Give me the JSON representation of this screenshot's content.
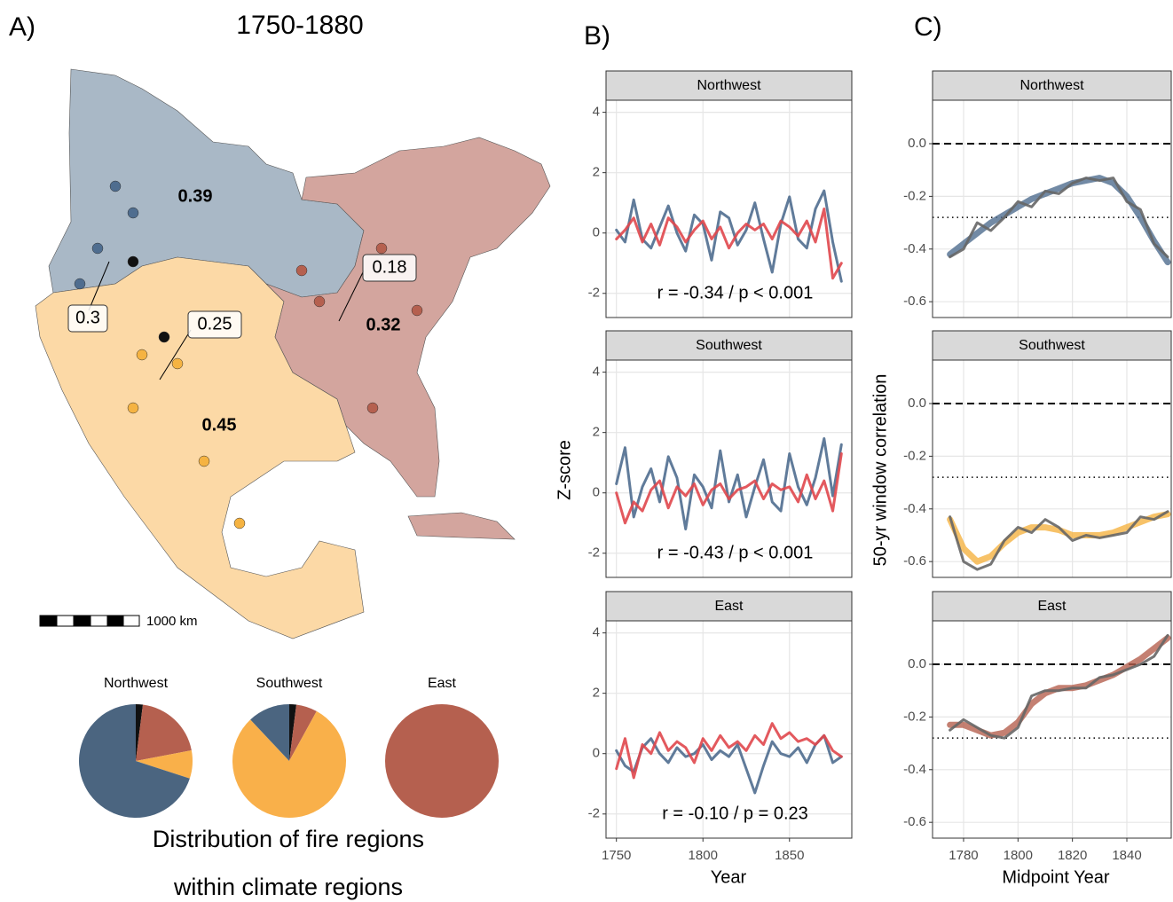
{
  "labels": {
    "a": "A)",
    "b": "B)",
    "c": "C)"
  },
  "map": {
    "title": "1750-1880",
    "region_values": [
      "0.39",
      "0.32",
      "0.45"
    ],
    "callouts": [
      "0.3",
      "0.25",
      "0.18"
    ],
    "scale": "1000 km"
  },
  "pie_caption": [
    "Distribution of fire regions",
    "within climate regions"
  ],
  "panel_b": {
    "xlabel": "Year",
    "ylabel": "Z-score"
  },
  "panel_c": {
    "xlabel": "Midpoint Year",
    "ylabel": "50-yr window correlation"
  },
  "chart_data": [
    {
      "type": "pie",
      "title": "Northwest",
      "values": [
        2,
        20,
        8,
        70
      ],
      "colors": [
        "#111111",
        "#b5604f",
        "#f9b04a",
        "#4b6580"
      ]
    },
    {
      "type": "pie",
      "title": "Southwest",
      "values": [
        2,
        6,
        80,
        12
      ],
      "colors": [
        "#111111",
        "#b5604f",
        "#f9b04a",
        "#4b6580"
      ]
    },
    {
      "type": "pie",
      "title": "East",
      "values": [
        0,
        100,
        0,
        0
      ],
      "colors": [
        "#111111",
        "#b5604f",
        "#f9b04a",
        "#4b6580"
      ]
    },
    {
      "type": "line",
      "title": "Northwest",
      "annotation": "r = -0.34 / p < 0.001",
      "x": [
        1750,
        1755,
        1760,
        1765,
        1770,
        1775,
        1780,
        1785,
        1790,
        1795,
        1800,
        1805,
        1810,
        1815,
        1820,
        1825,
        1830,
        1835,
        1840,
        1845,
        1850,
        1855,
        1860,
        1865,
        1870,
        1875,
        1880
      ],
      "xlim": [
        1744,
        1886
      ],
      "ylim": [
        -2.8,
        4.4
      ],
      "xticks": [
        1750,
        1800,
        1850
      ],
      "yticks": [
        -2,
        0,
        2,
        4
      ],
      "series": [
        {
          "color": "#4f6d8f",
          "width": 3,
          "values": [
            0.1,
            -0.3,
            1.1,
            -0.2,
            -0.5,
            0.2,
            0.9,
            0,
            -0.6,
            0.6,
            0.3,
            -0.9,
            0.7,
            0.5,
            -0.4,
            0.1,
            1.0,
            -0.2,
            -1.3,
            0.3,
            1.2,
            -0.2,
            -0.5,
            0.8,
            1.4,
            -0.3,
            -1.6
          ]
        },
        {
          "color": "#e0474c",
          "width": 3,
          "values": [
            -0.2,
            0.1,
            0.5,
            -0.3,
            0.3,
            -0.4,
            0.5,
            0.2,
            -0.3,
            0.1,
            0.4,
            -0.2,
            0.2,
            -0.5,
            0.0,
            0.3,
            0.1,
            0.3,
            -0.2,
            0.4,
            0.2,
            -0.1,
            0.4,
            -0.3,
            0.8,
            -1.5,
            -1.0
          ]
        }
      ]
    },
    {
      "type": "line",
      "title": "Southwest",
      "annotation": "r = -0.43 / p < 0.001",
      "x": [
        1750,
        1755,
        1760,
        1765,
        1770,
        1775,
        1780,
        1785,
        1790,
        1795,
        1800,
        1805,
        1810,
        1815,
        1820,
        1825,
        1830,
        1835,
        1840,
        1845,
        1850,
        1855,
        1860,
        1865,
        1870,
        1875,
        1880
      ],
      "xlim": [
        1744,
        1886
      ],
      "ylim": [
        -2.8,
        4.4
      ],
      "xticks": [
        1750,
        1800,
        1850
      ],
      "yticks": [
        -2,
        0,
        2,
        4
      ],
      "series": [
        {
          "color": "#4f6d8f",
          "width": 3,
          "values": [
            0.3,
            1.5,
            -0.8,
            0.2,
            0.8,
            -0.3,
            1.2,
            0.5,
            -1.2,
            0.6,
            0.2,
            -0.5,
            1.4,
            -0.3,
            0.6,
            -0.8,
            0.2,
            1.1,
            -0.3,
            -0.6,
            1.3,
            0.2,
            -0.4,
            0.5,
            1.8,
            -0.1,
            1.6
          ]
        },
        {
          "color": "#e0474c",
          "width": 3,
          "values": [
            0,
            -1.0,
            -0.3,
            -0.6,
            0.1,
            0.4,
            -0.5,
            0.2,
            -0.1,
            0.3,
            -0.4,
            0.1,
            0.3,
            -0.2,
            0.1,
            0.2,
            0.4,
            -0.2,
            0.3,
            0.1,
            0.2,
            -0.3,
            0.6,
            -0.2,
            0.4,
            -0.6,
            1.3
          ]
        }
      ]
    },
    {
      "type": "line",
      "title": "East",
      "annotation": "r = -0.10 / p = 0.23",
      "x": [
        1750,
        1755,
        1760,
        1765,
        1770,
        1775,
        1780,
        1785,
        1790,
        1795,
        1800,
        1805,
        1810,
        1815,
        1820,
        1825,
        1830,
        1835,
        1840,
        1845,
        1850,
        1855,
        1860,
        1865,
        1870,
        1875,
        1880
      ],
      "xlim": [
        1744,
        1886
      ],
      "ylim": [
        -2.8,
        4.4
      ],
      "xticks": [
        1750,
        1800,
        1850
      ],
      "yticks": [
        -2,
        0,
        2,
        4
      ],
      "series": [
        {
          "color": "#4f6d8f",
          "width": 3,
          "values": [
            0.1,
            -0.4,
            -0.6,
            0.2,
            0.5,
            0,
            -0.3,
            0.2,
            -0.1,
            0,
            0.3,
            -0.2,
            0.1,
            -0.1,
            0.3,
            -0.5,
            -1.3,
            -0.4,
            0.4,
            0,
            -0.1,
            0.2,
            -0.3,
            0.3,
            0.6,
            -0.3,
            -0.1
          ]
        },
        {
          "color": "#e0474c",
          "width": 3,
          "values": [
            -0.5,
            0.5,
            -0.8,
            0.3,
            0,
            0.7,
            0.1,
            0.4,
            0.2,
            -0.3,
            0.5,
            0.1,
            0.6,
            0.2,
            0.4,
            0.1,
            0.6,
            0.3,
            1.0,
            0.5,
            0.7,
            0.4,
            0.5,
            0.3,
            0.6,
            0.1,
            -0.1
          ]
        }
      ]
    },
    {
      "type": "line",
      "title": "Northwest",
      "x": [
        1775,
        1780,
        1785,
        1790,
        1795,
        1800,
        1805,
        1810,
        1815,
        1820,
        1825,
        1830,
        1835,
        1840,
        1845,
        1850,
        1855
      ],
      "xlim": [
        1768.6,
        1856.3
      ],
      "ylim": [
        -0.66,
        0.165
      ],
      "xticks": [
        1780,
        1800,
        1820,
        1840
      ],
      "yticks": [
        {
          "value": 0,
          "label": "0.0"
        },
        -0.2,
        -0.4,
        -0.6
      ],
      "hlines": [
        {
          "value": 0,
          "style": "dashed"
        },
        {
          "value": -0.28,
          "style": "dotted"
        }
      ],
      "series": [
        {
          "color": "#4f6d8f",
          "width": 7,
          "values": [
            -0.42,
            -0.38,
            -0.34,
            -0.3,
            -0.27,
            -0.24,
            -0.21,
            -0.19,
            -0.17,
            -0.15,
            -0.14,
            -0.13,
            -0.15,
            -0.2,
            -0.28,
            -0.37,
            -0.45
          ]
        },
        {
          "color": "#666666",
          "width": 3,
          "values": [
            -0.43,
            -0.4,
            -0.3,
            -0.33,
            -0.28,
            -0.22,
            -0.24,
            -0.18,
            -0.19,
            -0.15,
            -0.13,
            -0.14,
            -0.13,
            -0.22,
            -0.25,
            -0.38,
            -0.43
          ]
        }
      ]
    },
    {
      "type": "line",
      "title": "Southwest",
      "x": [
        1775,
        1780,
        1785,
        1790,
        1795,
        1800,
        1805,
        1810,
        1815,
        1820,
        1825,
        1830,
        1835,
        1840,
        1845,
        1850,
        1855
      ],
      "xlim": [
        1768.6,
        1856.3
      ],
      "ylim": [
        -0.66,
        0.165
      ],
      "xticks": [
        1780,
        1800,
        1820,
        1840
      ],
      "yticks": [
        {
          "value": 0,
          "label": "0.0"
        },
        -0.2,
        -0.4,
        -0.6
      ],
      "hlines": [
        {
          "value": 0,
          "style": "dashed"
        },
        {
          "value": -0.28,
          "style": "dotted"
        }
      ],
      "series": [
        {
          "color": "#f5b342",
          "width": 7,
          "values": [
            -0.44,
            -0.55,
            -0.6,
            -0.58,
            -0.53,
            -0.49,
            -0.47,
            -0.47,
            -0.48,
            -0.5,
            -0.5,
            -0.5,
            -0.49,
            -0.47,
            -0.45,
            -0.43,
            -0.42
          ]
        },
        {
          "color": "#666666",
          "width": 3,
          "values": [
            -0.43,
            -0.6,
            -0.63,
            -0.61,
            -0.52,
            -0.47,
            -0.49,
            -0.44,
            -0.47,
            -0.52,
            -0.5,
            -0.51,
            -0.5,
            -0.49,
            -0.43,
            -0.44,
            -0.41
          ]
        }
      ]
    },
    {
      "type": "line",
      "title": "East",
      "x": [
        1775,
        1780,
        1785,
        1790,
        1795,
        1800,
        1805,
        1810,
        1815,
        1820,
        1825,
        1830,
        1835,
        1840,
        1845,
        1850,
        1855
      ],
      "xlim": [
        1768.6,
        1856.3
      ],
      "ylim": [
        -0.66,
        0.165
      ],
      "xticks": [
        1780,
        1800,
        1820,
        1840
      ],
      "yticks": [
        {
          "value": 0,
          "label": "0.0"
        },
        -0.2,
        -0.4,
        -0.6
      ],
      "hlines": [
        {
          "value": 0,
          "style": "dashed"
        },
        {
          "value": -0.28,
          "style": "dotted"
        }
      ],
      "series": [
        {
          "color": "#b5604f",
          "width": 7,
          "values": [
            -0.23,
            -0.23,
            -0.25,
            -0.27,
            -0.26,
            -0.22,
            -0.15,
            -0.11,
            -0.09,
            -0.09,
            -0.08,
            -0.06,
            -0.04,
            -0.01,
            0.02,
            0.06,
            0.1
          ]
        },
        {
          "color": "#666666",
          "width": 3,
          "values": [
            -0.25,
            -0.21,
            -0.24,
            -0.27,
            -0.28,
            -0.24,
            -0.12,
            -0.1,
            -0.1,
            -0.09,
            -0.09,
            -0.05,
            -0.04,
            -0.02,
            0.0,
            0.03,
            0.11
          ]
        }
      ]
    }
  ]
}
